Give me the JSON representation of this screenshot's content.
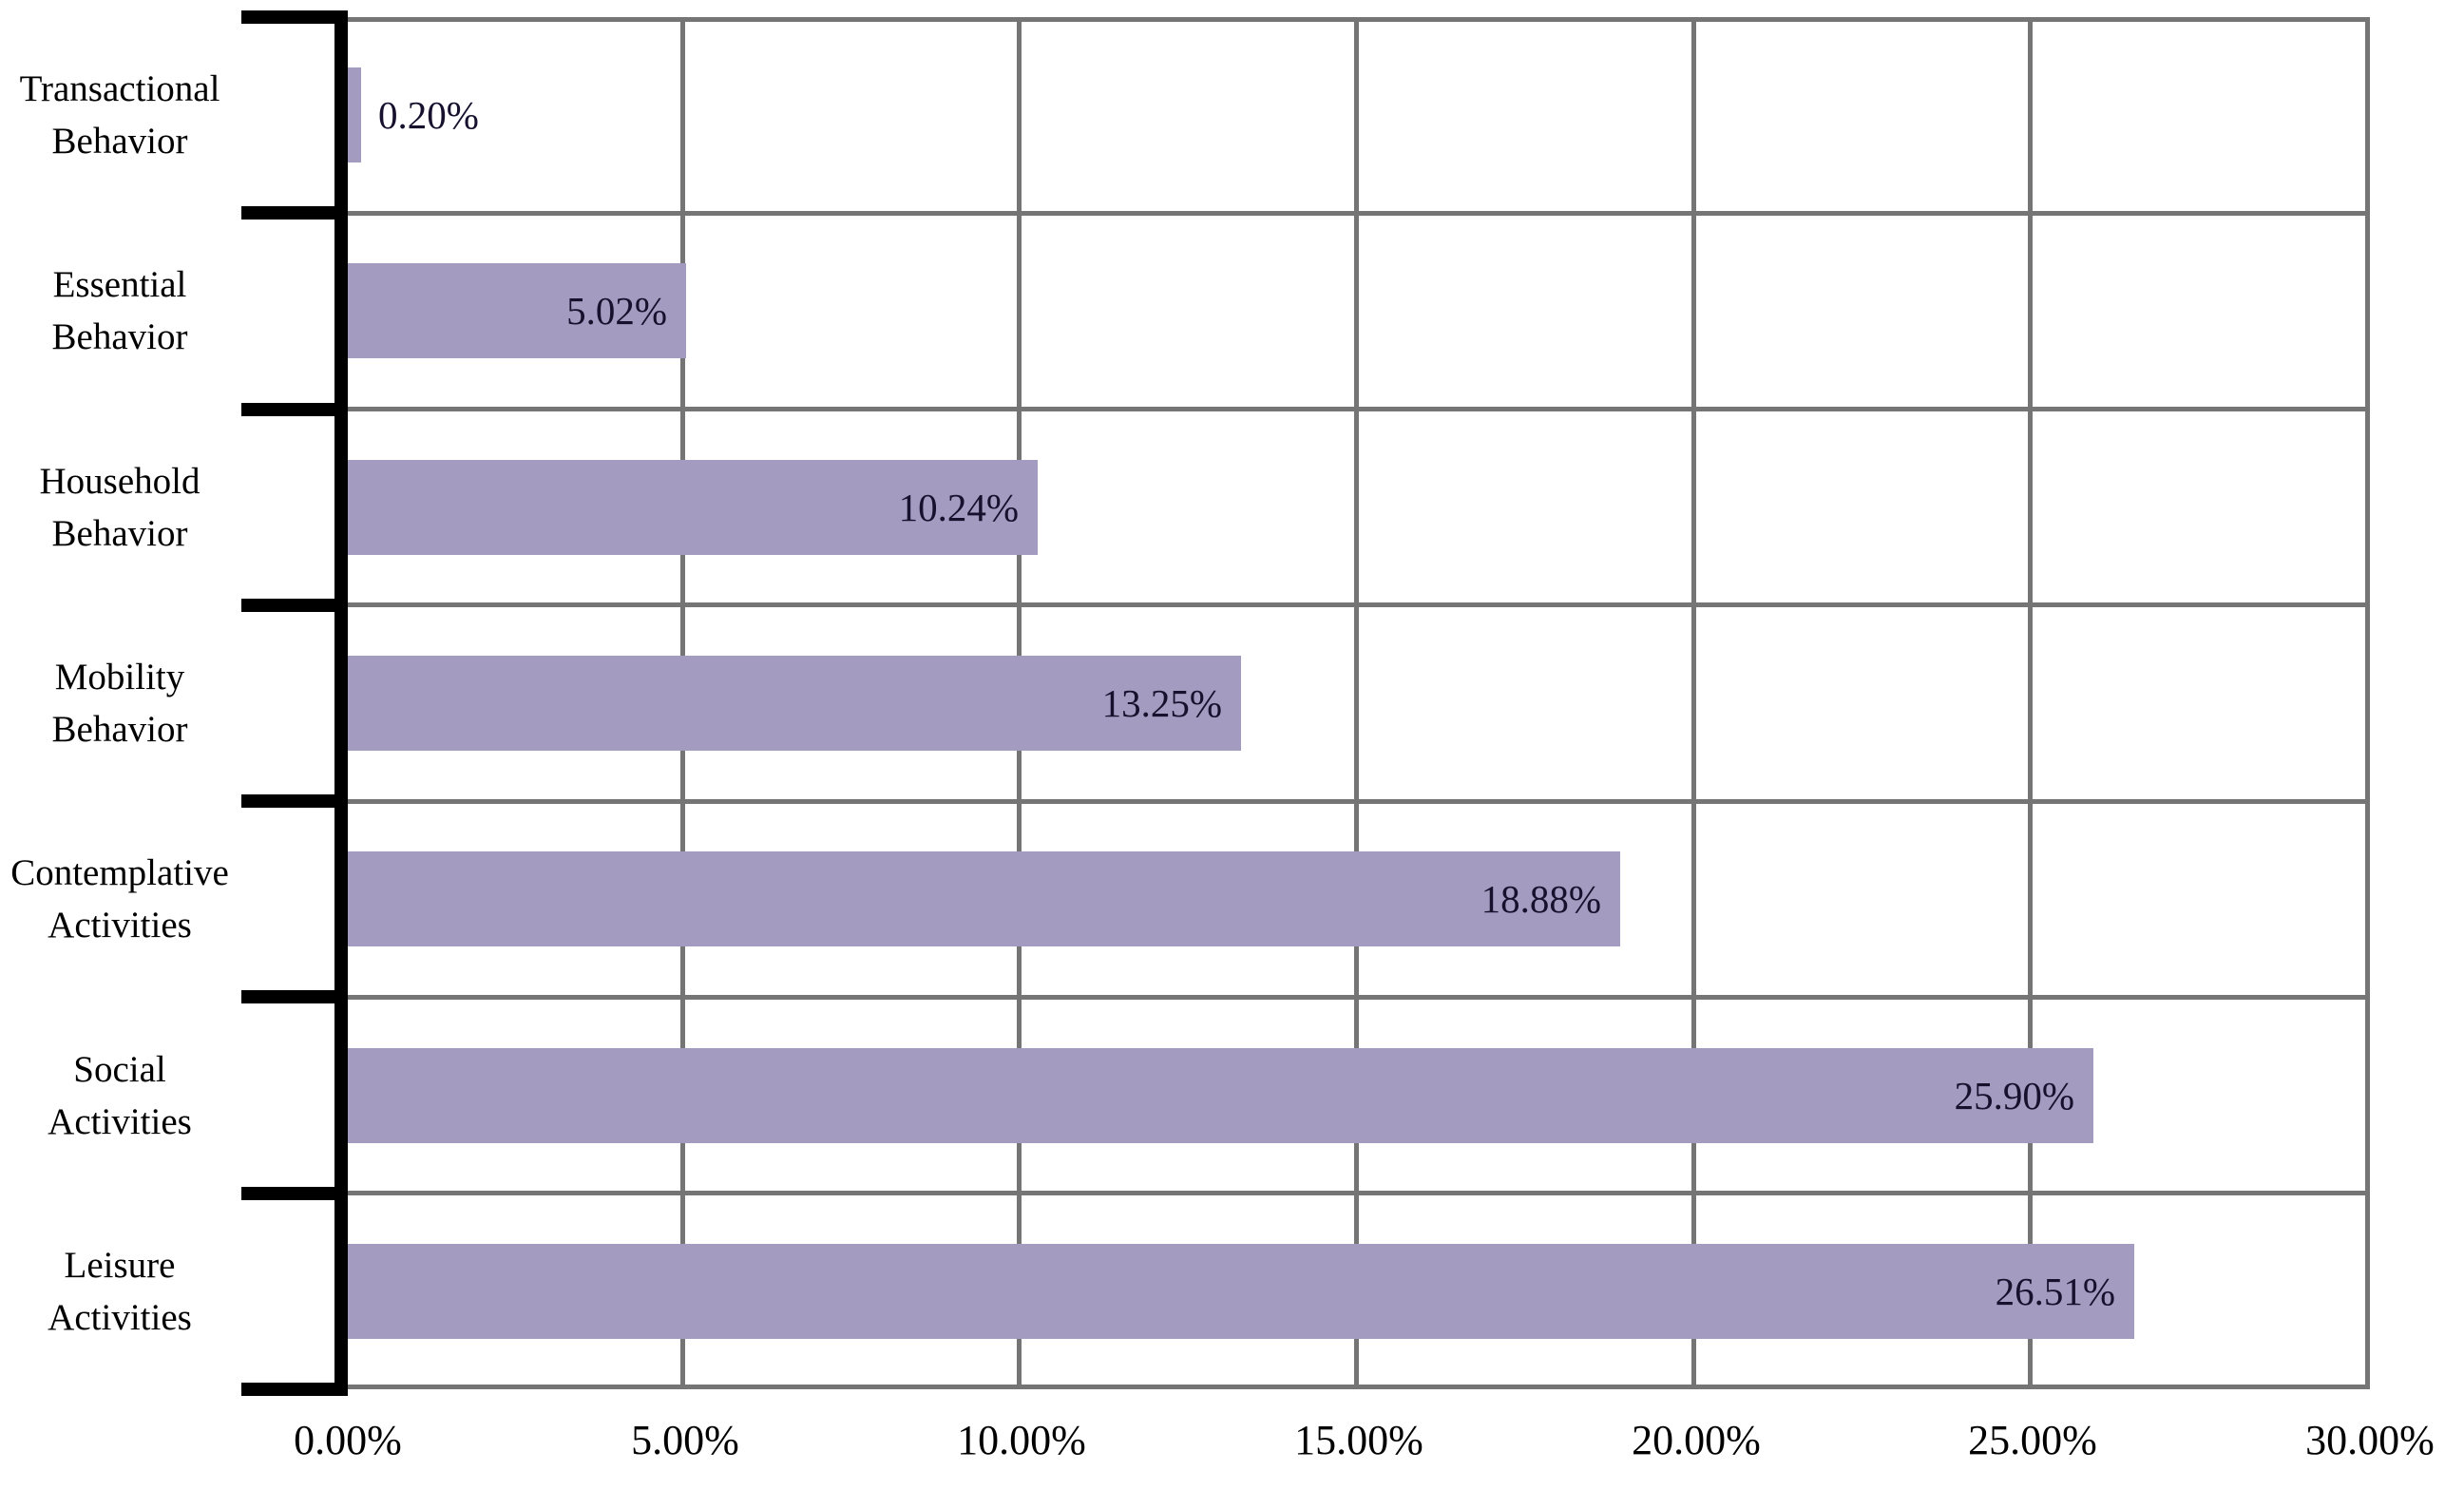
{
  "chart_data": {
    "type": "bar",
    "orientation": "horizontal",
    "title": "",
    "xlabel": "",
    "ylabel": "",
    "categories": [
      "Transactional\nBehavior",
      "Essential\nBehavior",
      "Household\nBehavior",
      "Mobility\nBehavior",
      "Contemplative\nActivities",
      "Social\nActivities",
      "Leisure\nActivities"
    ],
    "values": [
      0.2,
      5.02,
      10.24,
      13.25,
      18.88,
      25.9,
      26.51
    ],
    "value_labels": [
      "0.20%",
      "5.02%",
      "10.24%",
      "13.25%",
      "18.88%",
      "25.90%",
      "26.51%"
    ],
    "x_ticks": [
      "0.00%",
      "5.00%",
      "10.00%",
      "15.00%",
      "20.00%",
      "25.00%",
      "30.00%"
    ],
    "x_tick_values": [
      0,
      5,
      10,
      15,
      20,
      25,
      30
    ],
    "xlim": [
      0,
      30
    ],
    "grid": true,
    "legend": false,
    "colors": {
      "bar_fill": "#a49bc0",
      "gridline": "#757575",
      "plot_border": "#757575",
      "axis_line": "#000000",
      "data_label_text": "#17112e",
      "axis_label_text": "#000000",
      "background": "#ffffff"
    }
  }
}
